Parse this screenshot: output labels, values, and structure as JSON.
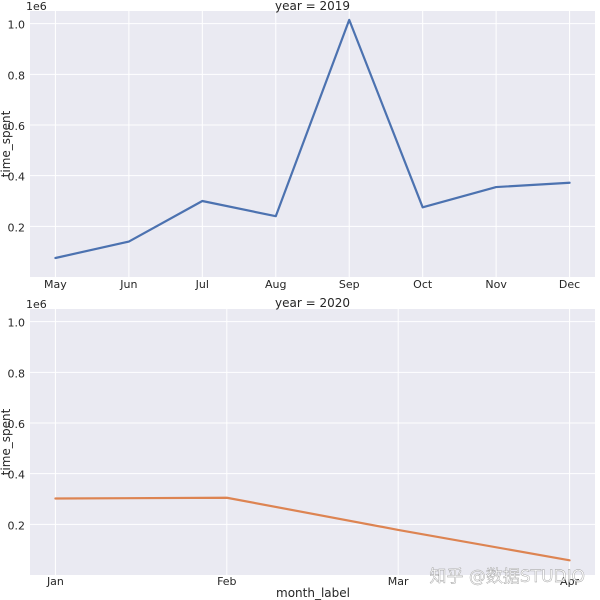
{
  "figure": {
    "watermark": "知乎 @数据STUDIO",
    "shared_xlabel": "month_label"
  },
  "chart_data": [
    {
      "type": "line",
      "title": "year = 2019",
      "xlabel": "",
      "ylabel": "time_spent",
      "y_offset_label": "1e6",
      "y_multiplier": 1000000,
      "ylim": [
        0,
        1.05
      ],
      "yticks": [
        0.2,
        0.4,
        0.6,
        0.8,
        1.0
      ],
      "ytick_labels": [
        "0.2",
        "0.4",
        "0.6",
        "0.8",
        "1.0"
      ],
      "grid": true,
      "categories": [
        "May",
        "Jun",
        "Jul",
        "Aug",
        "Sep",
        "Oct",
        "Nov",
        "Dec"
      ],
      "series": [
        {
          "color": "#4c72b0",
          "values": [
            75000,
            140000,
            300000,
            240000,
            1015000,
            275000,
            355000,
            372000
          ]
        }
      ]
    },
    {
      "type": "line",
      "title": "year = 2020",
      "xlabel": "month_label",
      "ylabel": "time_spent",
      "y_offset_label": "1e6",
      "y_multiplier": 1000000,
      "ylim": [
        0,
        1.05
      ],
      "yticks": [
        0.2,
        0.4,
        0.6,
        0.8,
        1.0
      ],
      "ytick_labels": [
        "0.2",
        "0.4",
        "0.6",
        "0.8",
        "1.0"
      ],
      "grid": true,
      "categories": [
        "Jan",
        "Feb",
        "Mar",
        "Apr"
      ],
      "series": [
        {
          "color": "#dd8452",
          "values": [
            302000,
            305000,
            178000,
            58000
          ]
        }
      ]
    }
  ]
}
